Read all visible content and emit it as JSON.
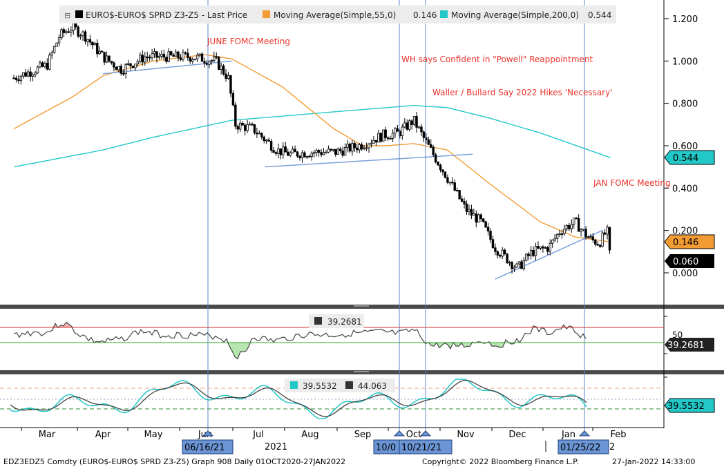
{
  "legend": {
    "main_label": "EURO$-EURO$ SPRD  Z3-Z5 - Last Price",
    "ma55_label": "Moving Average(Simple,55,0)",
    "ma55_value": "0.146",
    "ma200_label": "Moving Average(Simple,200,0)",
    "ma200_value": "0.544",
    "colors": {
      "price": "#000000",
      "ma55": "#f39c34",
      "ma200": "#22c7c7"
    }
  },
  "annotations": [
    {
      "text": "JUNE FOMC Meeting",
      "date": "2021-06-16"
    },
    {
      "text": "WH says Confident in \"Powell\" Reappointment",
      "date": "2021-10-01"
    },
    {
      "text": "Waller / Bullard Say 2022 Hikes 'Necessary'",
      "date": "2021-10-21"
    },
    {
      "text": "JAN FOMC Meeting",
      "date": "2022-01-25"
    }
  ],
  "event_dates": [
    "06/16/21",
    "10/0",
    "10/21/21",
    "01/25/22"
  ],
  "price_tags": {
    "ma200": "0.544",
    "ma55": "0.146",
    "last": "0.060"
  },
  "rsi": {
    "value_label": "39.2681",
    "tag": "39.2681",
    "upper": "50"
  },
  "stoch": {
    "k_label": "39.5532",
    "d_label": "44.063",
    "tag": "39.5532"
  },
  "x_axis": {
    "months": [
      "Mar",
      "Apr",
      "May",
      "Jun",
      "Jul",
      "Aug",
      "Sep",
      "Oct",
      "Nov",
      "Dec",
      "Jan",
      "Feb"
    ],
    "year_2021": "2021",
    "year_2022": "2"
  },
  "footer": {
    "left": "EDZ3EDZ5 Comdty (EURO$-EURO$ SPRD  Z3-Z5) Graph 908  Daily 01OCT2020-27JAN2022",
    "copyright": "Copyright© 2022 Bloomberg Finance L.P.",
    "timestamp": "27-Jan-2022 14:33:00"
  },
  "chart_data": [
    {
      "type": "line",
      "panel": "price",
      "series": [
        {
          "name": "EURO$-EURO$ SPRD  Z3-Z5 - Last Price",
          "style": "candlestick",
          "x": [
            "2021-02-15",
            "2021-03-01",
            "2021-03-08",
            "2021-03-15",
            "2021-03-22",
            "2021-04-01",
            "2021-04-12",
            "2021-04-26",
            "2021-05-10",
            "2021-05-24",
            "2021-06-07",
            "2021-06-14",
            "2021-06-18",
            "2021-06-28",
            "2021-07-12",
            "2021-07-20",
            "2021-08-02",
            "2021-08-16",
            "2021-08-30",
            "2021-09-13",
            "2021-09-22",
            "2021-10-01",
            "2021-10-08",
            "2021-10-21",
            "2021-11-01",
            "2021-11-10",
            "2021-11-18",
            "2021-12-01",
            "2021-12-10",
            "2021-12-20",
            "2021-12-27",
            "2022-01-05",
            "2022-01-14",
            "2022-01-20",
            "2022-01-25",
            "2022-01-27"
          ],
          "y": [
            0.92,
            0.98,
            1.12,
            1.16,
            1.12,
            1.02,
            0.96,
            1.02,
            1.02,
            1.02,
            1.0,
            0.92,
            0.7,
            0.68,
            0.58,
            0.56,
            0.57,
            0.57,
            0.6,
            0.65,
            0.66,
            0.72,
            0.62,
            0.45,
            0.3,
            0.24,
            0.12,
            0.02,
            0.1,
            0.12,
            0.2,
            0.24,
            0.16,
            0.14,
            0.2,
            0.06
          ]
        },
        {
          "name": "Moving Average(Simple,55,0)",
          "x": [
            "2021-02-15",
            "2021-03-15",
            "2021-04-01",
            "2021-05-01",
            "2021-06-01",
            "2021-06-16",
            "2021-07-15",
            "2021-08-15",
            "2021-09-01",
            "2021-09-15",
            "2021-10-01",
            "2021-10-21",
            "2021-11-15",
            "2021-12-15",
            "2022-01-05",
            "2022-01-27"
          ],
          "y": [
            0.68,
            0.83,
            0.93,
            1.0,
            1.03,
            1.01,
            0.88,
            0.68,
            0.6,
            0.6,
            0.61,
            0.58,
            0.42,
            0.24,
            0.17,
            0.146
          ]
        },
        {
          "name": "Moving Average(Simple,200,0)",
          "x": [
            "2021-02-15",
            "2021-04-01",
            "2021-05-01",
            "2021-06-16",
            "2021-08-15",
            "2021-10-01",
            "2021-10-21",
            "2021-11-15",
            "2021-12-15",
            "2022-01-27"
          ],
          "y": [
            0.5,
            0.58,
            0.64,
            0.72,
            0.76,
            0.79,
            0.78,
            0.73,
            0.66,
            0.544
          ]
        }
      ],
      "ylim": [
        -0.1,
        1.25
      ],
      "yticks": [
        "1.200",
        "1.000",
        "0.800",
        "0.600",
        "0.400",
        "0.200",
        "0.000"
      ]
    },
    {
      "type": "area",
      "panel": "rsi",
      "series": [
        {
          "name": "RSI",
          "value": 39.2681
        }
      ],
      "overbought": 70,
      "oversold": 30,
      "ylim": [
        20,
        90
      ],
      "yticks": [
        "50"
      ]
    },
    {
      "type": "line",
      "panel": "stochastic",
      "series": [
        {
          "name": "%K",
          "value": 39.5532
        },
        {
          "name": "%D",
          "value": 44.063
        }
      ],
      "ylim": [
        0,
        100
      ]
    }
  ]
}
